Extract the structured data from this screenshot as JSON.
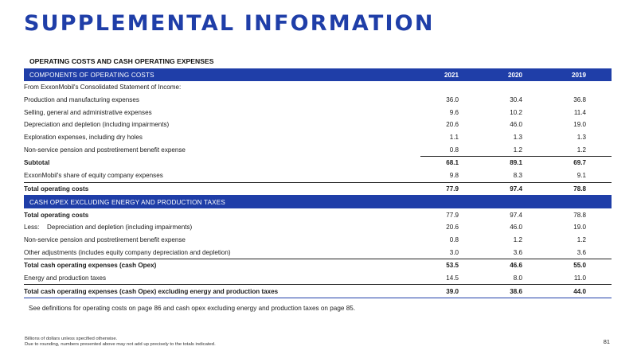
{
  "title": "SUPPLEMENTAL INFORMATION",
  "subhead": "OPERATING COSTS AND CASH OPERATING EXPENSES",
  "section1": {
    "header": "COMPONENTS OF OPERATING COSTS",
    "years": [
      "2021",
      "2020",
      "2019"
    ],
    "intro": "From ExxonMobil's Consolidated Statement of Income:",
    "rows": [
      {
        "label": "Production and manufacturing expenses",
        "values": [
          "36.0",
          "30.4",
          "36.8"
        ]
      },
      {
        "label": "Selling, general and administrative expenses",
        "values": [
          "9.6",
          "10.2",
          "11.4"
        ]
      },
      {
        "label": "Depreciation and depletion (including impairments)",
        "values": [
          "20.6",
          "46.0",
          "19.0"
        ]
      },
      {
        "label": "Exploration expenses, including dry holes",
        "values": [
          "1.1",
          "1.3",
          "1.3"
        ]
      },
      {
        "label": "Non-service pension and postretirement benefit expense",
        "values": [
          "0.8",
          "1.2",
          "1.2"
        ]
      }
    ],
    "subtotal": {
      "label": "Subtotal",
      "values": [
        "68.1",
        "89.1",
        "69.7"
      ]
    },
    "equity": {
      "label": "ExxonMobil's share of equity company expenses",
      "values": [
        "9.8",
        "8.3",
        "9.1"
      ]
    },
    "total": {
      "label": "Total operating costs",
      "values": [
        "77.9",
        "97.4",
        "78.8"
      ]
    }
  },
  "section2": {
    "header": "CASH OPEX EXCLUDING ENERGY AND PRODUCTION TAXES",
    "total_opcost": {
      "label": "Total operating costs",
      "values": [
        "77.9",
        "97.4",
        "78.8"
      ]
    },
    "less_prefix": "Less:",
    "less_row": {
      "label": "Depreciation and depletion (including impairments)",
      "values": [
        "20.6",
        "46.0",
        "19.0"
      ]
    },
    "rows": [
      {
        "label": "Non-service pension and postretirement benefit expense",
        "values": [
          "0.8",
          "1.2",
          "1.2"
        ]
      },
      {
        "label": "Other adjustments (includes equity company depreciation and depletion)",
        "values": [
          "3.0",
          "3.6",
          "3.6"
        ]
      }
    ],
    "cash_opex": {
      "label": "Total cash operating expenses (cash Opex)",
      "values": [
        "53.5",
        "46.6",
        "55.0"
      ]
    },
    "energy": {
      "label": "Energy and production taxes",
      "values": [
        "14.5",
        "8.0",
        "11.0"
      ]
    },
    "cash_opex_excl": {
      "label": "Total cash operating expenses (cash Opex) excluding energy and production taxes",
      "values": [
        "39.0",
        "38.6",
        "44.0"
      ]
    }
  },
  "definitions": "See definitions for operating costs on page 86 and cash opex excluding energy and production taxes on page 85.",
  "footnotes": [
    "Billions of dollars unless specified otherwise.",
    "Due to rounding, numbers presented above may not add up precisely to the totals indicated."
  ],
  "page_number": "81",
  "colors": {
    "accent": "#1f3ea8"
  }
}
